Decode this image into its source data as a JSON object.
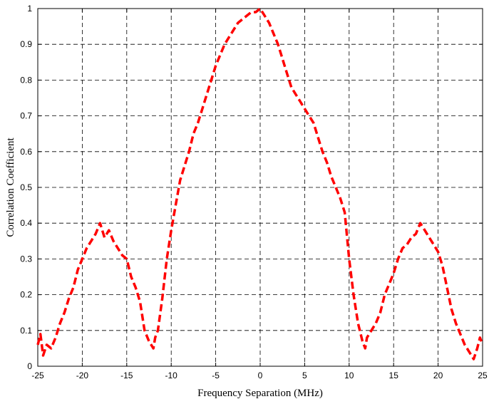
{
  "chart_data": {
    "type": "line",
    "title": "",
    "xlabel": "Frequency Separation (MHz)",
    "ylabel": "Correlation Coefficient",
    "xlim": [
      -25,
      25
    ],
    "ylim": [
      0,
      1
    ],
    "xticks": [
      -25,
      -20,
      -15,
      -10,
      -5,
      0,
      5,
      10,
      15,
      20,
      25
    ],
    "yticks": [
      0,
      0.1,
      0.2,
      0.3,
      0.4,
      0.5,
      0.6,
      0.7,
      0.8,
      0.9,
      1
    ],
    "grid": true,
    "grid_style": "dashed",
    "series": [
      {
        "line_style": "dashed",
        "color": "#ff0000",
        "x": [
          -25,
          -24.7,
          -24.4,
          -24,
          -23.5,
          -23,
          -22.5,
          -22,
          -21.5,
          -21,
          -20.5,
          -20,
          -19.5,
          -19,
          -18.5,
          -18,
          -17.5,
          -17,
          -16.5,
          -16,
          -15.5,
          -15,
          -14.5,
          -14,
          -13.5,
          -13,
          -12.5,
          -12,
          -11.8,
          -11.5,
          -11,
          -10.5,
          -10,
          -9.5,
          -9,
          -8.5,
          -8,
          -7.5,
          -7,
          -6.5,
          -6,
          -5.5,
          -5,
          -4.5,
          -4,
          -3.5,
          -3,
          -2.5,
          -2,
          -1.5,
          -1,
          -0.5,
          0,
          0.5,
          1,
          1.5,
          2,
          2.5,
          3,
          3.5,
          4,
          4.5,
          5,
          5.5,
          6,
          6.5,
          7,
          7.5,
          8,
          8.5,
          9,
          9.5,
          10,
          10.5,
          11,
          11.5,
          11.8,
          12,
          12.5,
          13,
          13.5,
          14,
          14.5,
          15,
          15.5,
          16,
          16.5,
          17,
          17.5,
          18,
          18.5,
          19,
          19.5,
          20,
          20.5,
          21,
          21.5,
          22,
          22.5,
          23,
          23.5,
          24,
          24.4,
          24.7,
          25
        ],
        "y": [
          0.06,
          0.09,
          0.03,
          0.06,
          0.05,
          0.08,
          0.12,
          0.15,
          0.19,
          0.22,
          0.27,
          0.3,
          0.33,
          0.35,
          0.37,
          0.4,
          0.36,
          0.38,
          0.35,
          0.33,
          0.31,
          0.3,
          0.25,
          0.22,
          0.18,
          0.1,
          0.07,
          0.05,
          0.08,
          0.1,
          0.19,
          0.3,
          0.38,
          0.45,
          0.52,
          0.56,
          0.6,
          0.65,
          0.68,
          0.72,
          0.76,
          0.8,
          0.84,
          0.87,
          0.9,
          0.92,
          0.94,
          0.96,
          0.97,
          0.98,
          0.99,
          0.99,
          1,
          0.98,
          0.96,
          0.93,
          0.9,
          0.86,
          0.82,
          0.78,
          0.76,
          0.74,
          0.72,
          0.7,
          0.68,
          0.64,
          0.6,
          0.57,
          0.53,
          0.5,
          0.47,
          0.43,
          0.3,
          0.2,
          0.12,
          0.07,
          0.05,
          0.08,
          0.1,
          0.12,
          0.15,
          0.2,
          0.23,
          0.26,
          0.3,
          0.33,
          0.34,
          0.36,
          0.37,
          0.4,
          0.38,
          0.36,
          0.34,
          0.32,
          0.28,
          0.22,
          0.16,
          0.12,
          0.09,
          0.06,
          0.04,
          0.02,
          0.05,
          0.08,
          0.06
        ]
      }
    ]
  }
}
